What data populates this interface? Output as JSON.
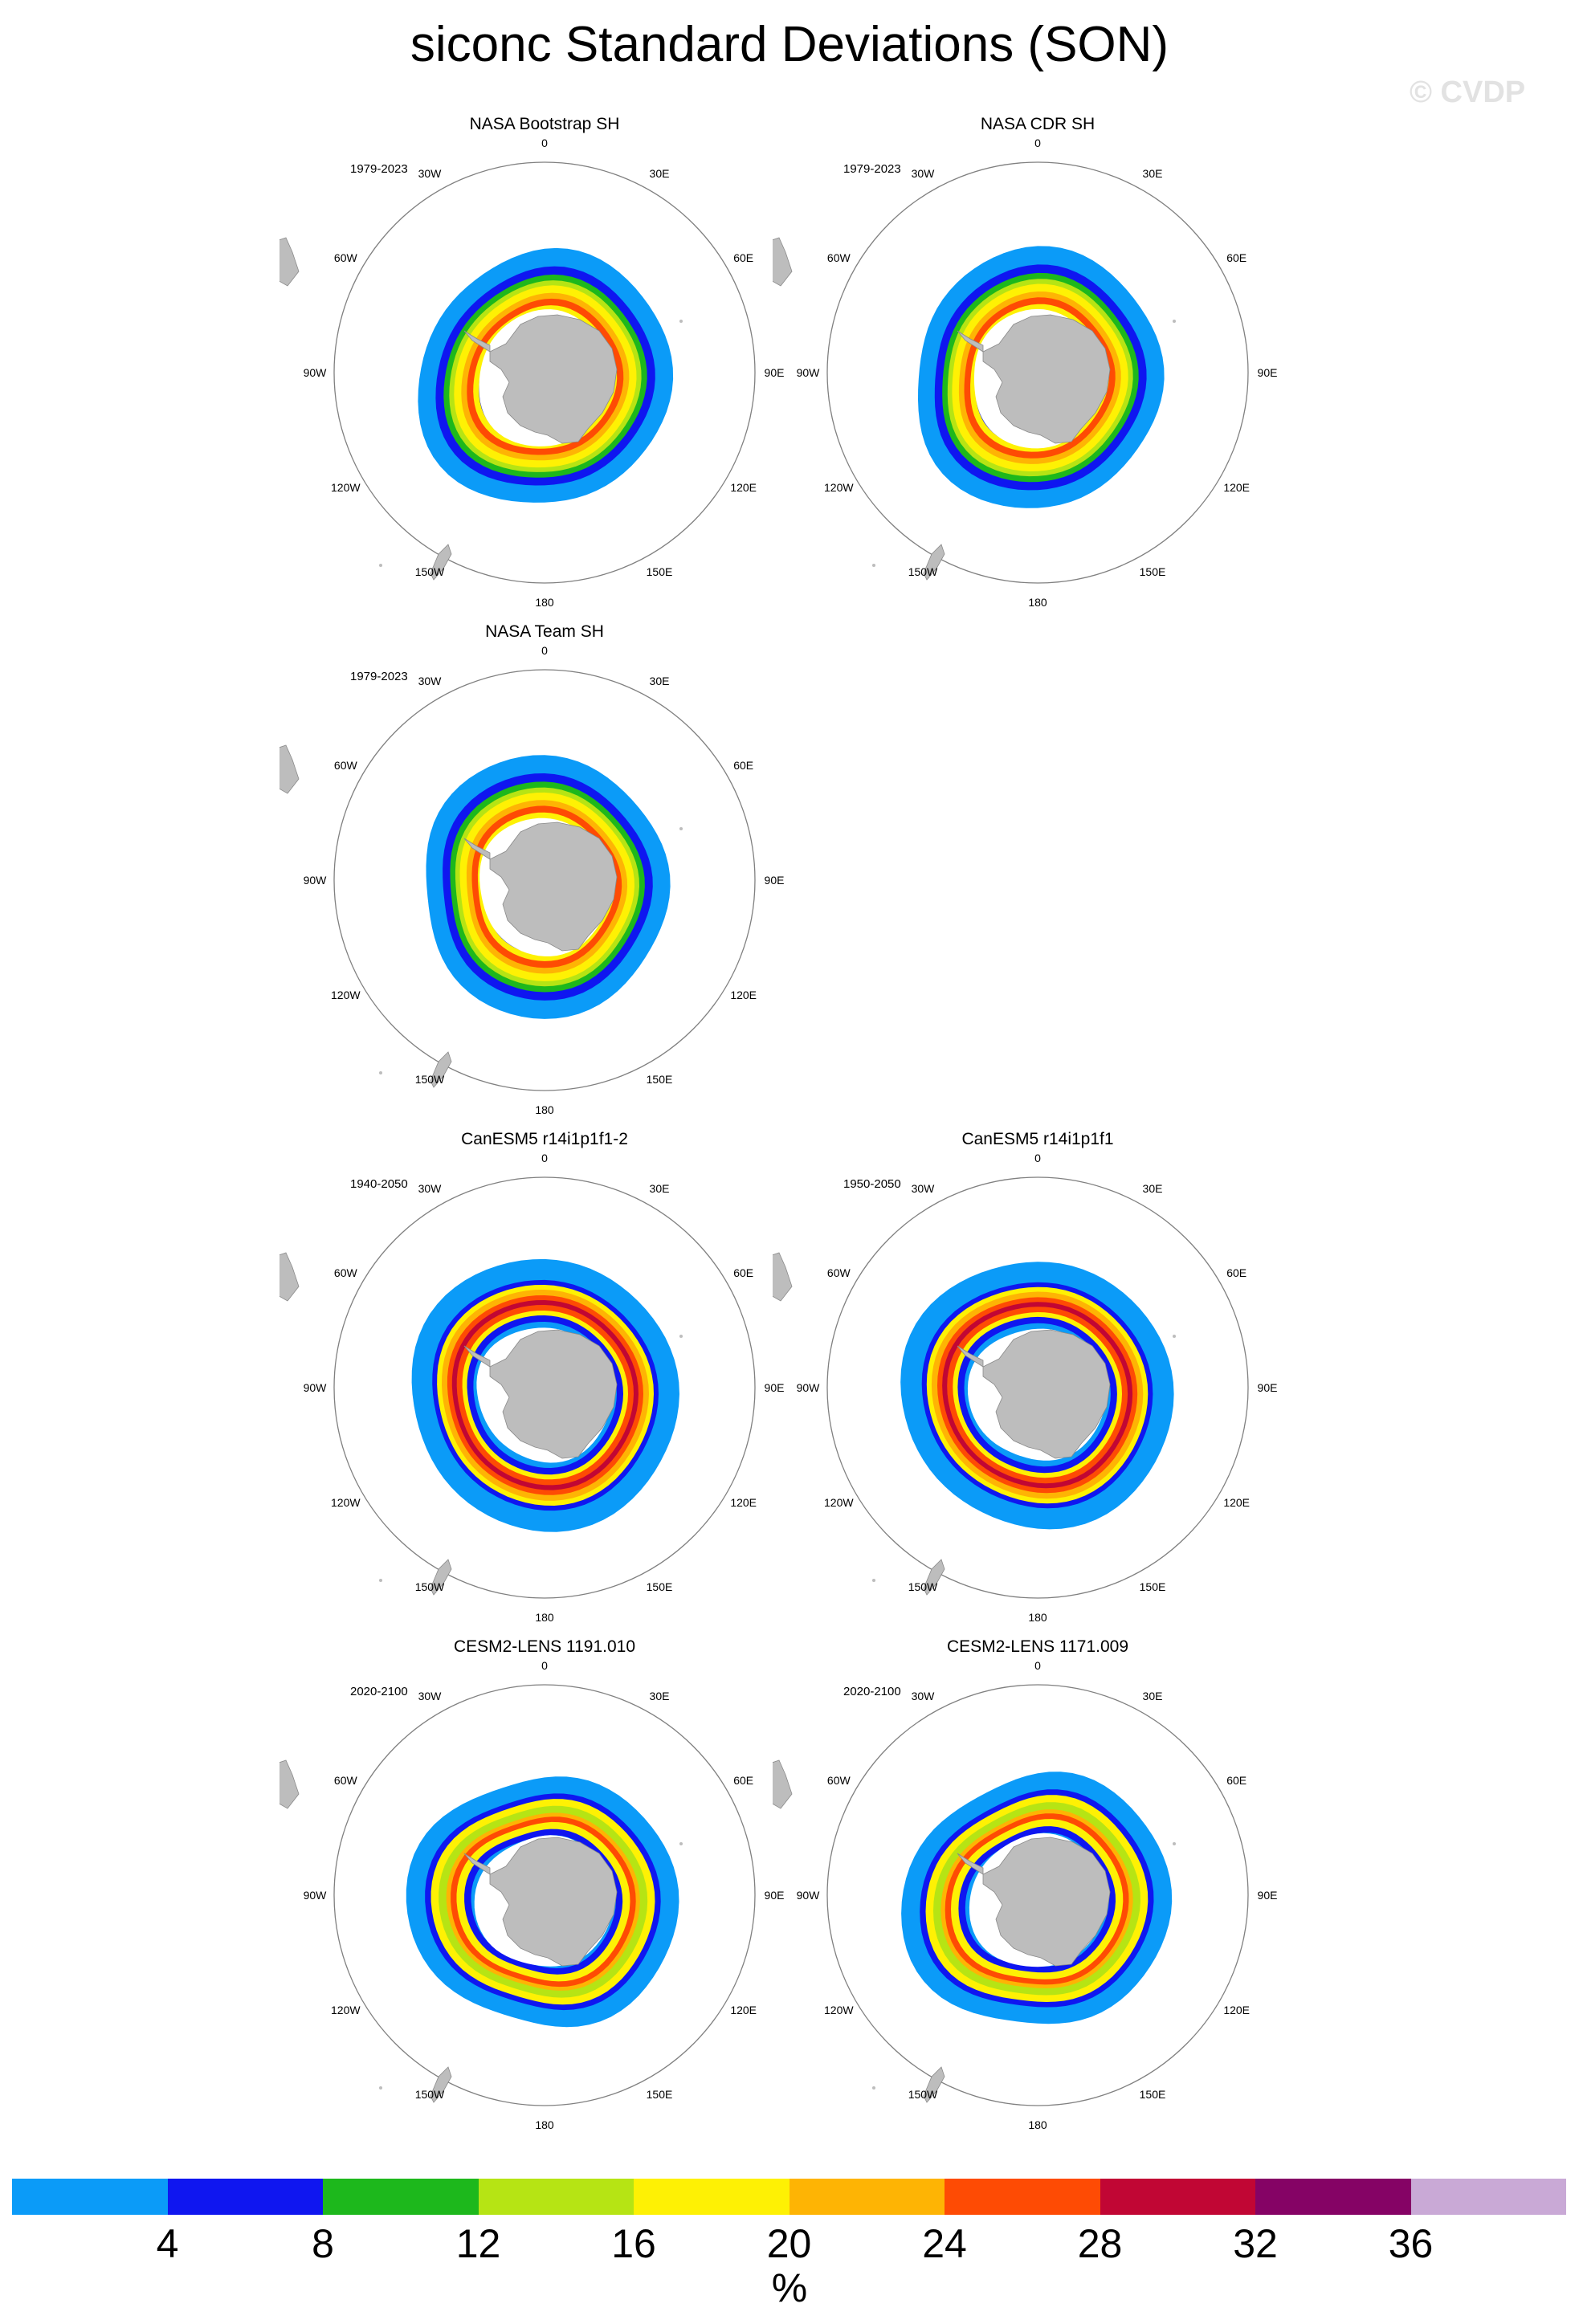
{
  "title": "siconc Standard Deviations (SON)",
  "watermark": "© CVDP",
  "longitude_labels": [
    "0",
    "30E",
    "60E",
    "90E",
    "120E",
    "150E",
    "180",
    "150W",
    "120W",
    "90W",
    "60W",
    "30W"
  ],
  "panels": [
    {
      "title": "NASA Bootstrap SH",
      "years": "1979-2023",
      "style": "obs"
    },
    {
      "title": "NASA CDR SH",
      "years": "1979-2023",
      "style": "obs"
    },
    {
      "title": "NASA Team SH",
      "years": "1979-2023",
      "style": "obs"
    },
    {
      "title": "CanESM5 r14i1p1f1-2",
      "years": "1940-2050",
      "style": "can"
    },
    {
      "title": "CanESM5 r14i1p1f1",
      "years": "1950-2050",
      "style": "can"
    },
    {
      "title": "CESM2-LENS 1191.010",
      "years": "2020-2100",
      "style": "cesm"
    },
    {
      "title": "CESM2-LENS 1171.009",
      "years": "2020-2100",
      "style": "cesm"
    }
  ],
  "colorbar": {
    "colors": [
      "#0b9bf8",
      "#0f16f0",
      "#1db81c",
      "#b6e414",
      "#fef104",
      "#feb404",
      "#fe4b04",
      "#c10634",
      "#850365",
      "#c9a9d6"
    ],
    "ticks": [
      "4",
      "8",
      "12",
      "16",
      "20",
      "24",
      "28",
      "32",
      "36"
    ],
    "units": "%"
  },
  "land_color": "#bdbdbd"
}
